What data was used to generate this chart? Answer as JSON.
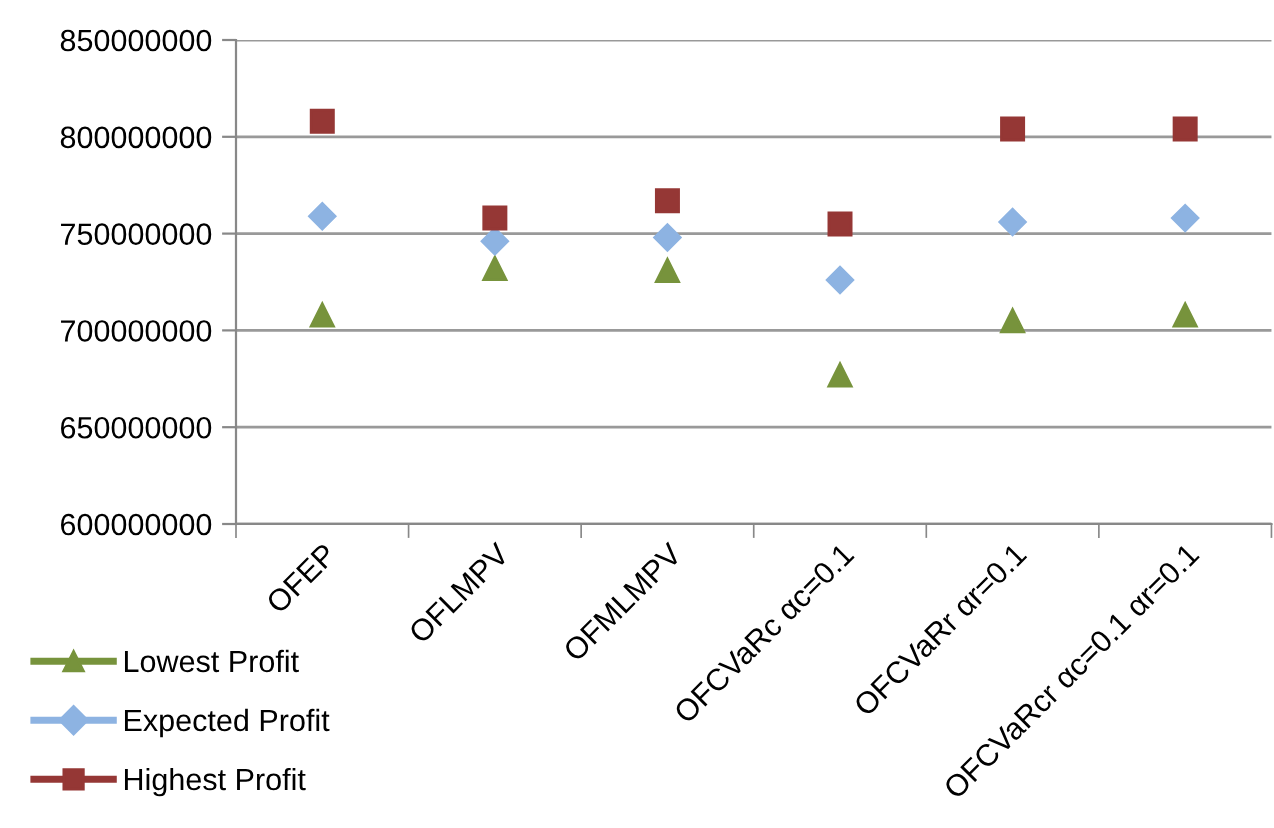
{
  "chart_data": {
    "type": "scatter",
    "categories": [
      "OFEP",
      "OFLMPV",
      "OFMLMPV",
      "OFCVaRc αc=0.1",
      "OFCVaRr αr=0.1",
      "OFCVaRcr αc=0.1 αr=0.1"
    ],
    "series": [
      {
        "name": "Lowest Profit",
        "color": "#77933c",
        "marker": "triangle",
        "values": [
          708000000,
          732000000,
          731000000,
          677000000,
          705000000,
          708000000
        ]
      },
      {
        "name": "Expected Profit",
        "color": "#8db3e2",
        "marker": "diamond",
        "values": [
          759000000,
          746000000,
          748000000,
          726000000,
          756000000,
          758000000
        ]
      },
      {
        "name": "Highest Profit",
        "color": "#953735",
        "marker": "square",
        "values": [
          808000000,
          758000000,
          767000000,
          755000000,
          804000000,
          804000000
        ]
      }
    ],
    "ylim": [
      600000000,
      850000000
    ],
    "yticks": [
      600000000,
      650000000,
      700000000,
      750000000,
      800000000,
      850000000
    ],
    "grid": "y",
    "legend": "bottom left"
  }
}
